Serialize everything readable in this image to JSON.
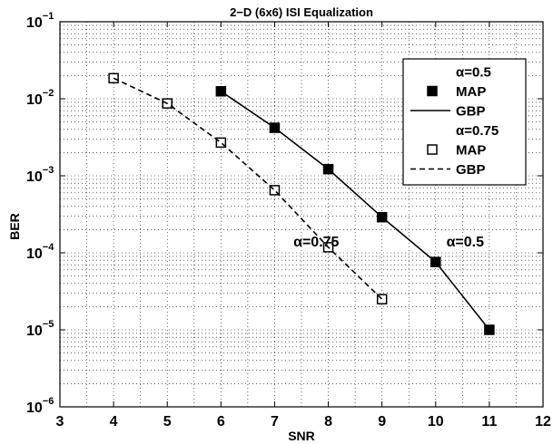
{
  "chart_data": {
    "type": "line",
    "title": "2−D (6x6) ISI Equalization",
    "xlabel": "SNR",
    "ylabel": "BER",
    "xlim": [
      3,
      12
    ],
    "ylim": [
      1e-06,
      0.1
    ],
    "yscale": "log",
    "grid": "dotted, with minor log gridlines",
    "x_ticks": [
      "3",
      "4",
      "5",
      "6",
      "7",
      "8",
      "9",
      "10",
      "11",
      "12"
    ],
    "y_ticks": [
      {
        "value": 0.1,
        "base": "10",
        "exp": "−1"
      },
      {
        "value": 0.01,
        "base": "10",
        "exp": "−2"
      },
      {
        "value": 0.001,
        "base": "10",
        "exp": "−3"
      },
      {
        "value": 0.0001,
        "base": "10",
        "exp": "−4"
      },
      {
        "value": 1e-05,
        "base": "10",
        "exp": "−5"
      },
      {
        "value": 1e-06,
        "base": "10",
        "exp": "−6"
      }
    ],
    "series": [
      {
        "name": "MAP",
        "group": "α=0.5",
        "style": "markers",
        "marker": "filled-square",
        "x": [
          6,
          7,
          8,
          9,
          10,
          11
        ],
        "y": [
          0.0125,
          0.0042,
          0.00122,
          0.00029,
          7.6e-05,
          1e-05
        ]
      },
      {
        "name": "GBP",
        "group": "α=0.5",
        "style": "solid",
        "x": [
          6,
          7,
          8,
          9,
          10,
          11
        ],
        "y": [
          0.0125,
          0.0042,
          0.00122,
          0.00029,
          7.6e-05,
          1e-05
        ]
      },
      {
        "name": "MAP",
        "group": "α=0.75",
        "style": "markers",
        "marker": "open-square",
        "x": [
          4,
          5,
          6,
          7,
          8,
          9
        ],
        "y": [
          0.0185,
          0.0087,
          0.0027,
          0.00065,
          0.000118,
          2.5e-05
        ]
      },
      {
        "name": "GBP",
        "group": "α=0.75",
        "style": "dashed",
        "x": [
          4,
          5,
          6,
          7,
          8,
          9
        ],
        "y": [
          0.0185,
          0.0087,
          0.0027,
          0.00065,
          0.000118,
          2.5e-05
        ]
      }
    ],
    "legend": {
      "placement": "top-right",
      "entries": [
        {
          "kind": "header",
          "label": "α=0.5"
        },
        {
          "kind": "filled-square",
          "label": "MAP"
        },
        {
          "kind": "solid-line",
          "label": "GBP"
        },
        {
          "kind": "header",
          "label": "α=0.75"
        },
        {
          "kind": "open-square",
          "label": "MAP"
        },
        {
          "kind": "dashed-line",
          "label": "GBP"
        }
      ]
    },
    "annotations": [
      {
        "text": "α=0.75",
        "x": 7.35,
        "y": 0.0001
      },
      {
        "text": "α=0.5",
        "x": 10.2,
        "y": 0.0001
      }
    ]
  }
}
